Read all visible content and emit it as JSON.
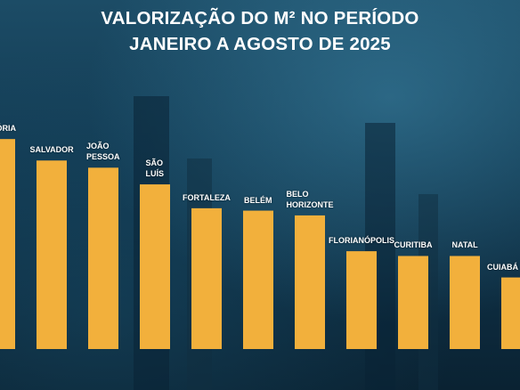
{
  "title_line1": "VALORIZAÇÃO DO M² NO PERÍODO",
  "title_line2": "JANEIRO A AGOSTO DE 2025",
  "colors": {
    "bar": "#f2b03c",
    "label": "#ffffff",
    "background": "#123a52"
  },
  "chart_data": {
    "type": "bar",
    "title": "VALORIZAÇÃO DO M² NO PERÍODO JANEIRO A AGOSTO DE 2025",
    "xlabel": "",
    "ylabel": "",
    "grid": false,
    "legend": "none",
    "categories": [
      "VITÓRIA",
      "SALVADOR",
      "JOÃO PESSOA",
      "SÃO LUÍS",
      "FORTALEZA",
      "BELÉM",
      "BELO HORIZONTE",
      "FLORIANÓPOLIS",
      "CURITIBA",
      "NATAL",
      "CUIABÁ"
    ],
    "label_lines": [
      [
        "VITÓRIA"
      ],
      [
        "SALVADOR"
      ],
      [
        "JOÃO",
        "PESSOA"
      ],
      [
        "SÃO",
        "LUÍS"
      ],
      [
        "FORTALEZA"
      ],
      [
        "BELÉM"
      ],
      [
        "BELO",
        "HORIZONTE"
      ],
      [
        "FLORIANÓPOLIS"
      ],
      [
        "CURITIBA"
      ],
      [
        "NATAL"
      ],
      [
        "CUIABÁ"
      ]
    ],
    "values": [
      8.8,
      7.9,
      7.6,
      6.9,
      5.9,
      5.8,
      5.6,
      4.1,
      3.9,
      3.9,
      3.0
    ],
    "ylim": [
      0,
      10
    ]
  }
}
